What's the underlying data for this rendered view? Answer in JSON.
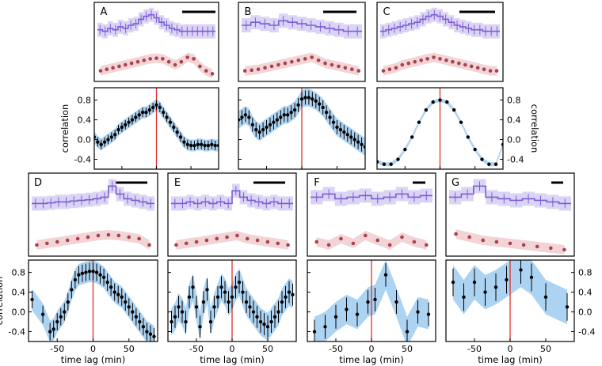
{
  "chart_data": {
    "type": "composite-line",
    "description_text": {},
    "colors": {
      "top_series": "#7b5cd6",
      "top_band": "#d6cdf2",
      "bottom_series": "#a8424c",
      "bottom_band": "#f1cfd3",
      "corr_band": "#9fcbf0",
      "corr_point": "#000000",
      "zero_lag_line": "#e0302a"
    },
    "xlabel": "time lag (min)",
    "ylabel": "correlation",
    "xticks": [
      "-50",
      "0",
      "50"
    ],
    "yticks": [
      "0.8",
      "0.4",
      "0.0",
      "-0.4"
    ],
    "corr_xlim": [
      -90,
      90
    ],
    "corr_ylim": [
      -0.6,
      1.05
    ],
    "panels": [
      {
        "label": "A",
        "top_series": [
          0.35,
          0.3,
          0.4,
          0.35,
          0.45,
          0.4,
          0.5,
          0.55,
          0.7,
          0.8,
          0.85,
          0.75,
          0.6,
          0.5,
          0.4,
          0.35,
          0.3,
          0.3,
          0.3,
          0.3,
          0.3,
          0.3,
          0.3
        ],
        "bottom_series": [
          0.3,
          0.35,
          0.4,
          0.45,
          0.5,
          0.55,
          0.6,
          0.65,
          0.7,
          0.72,
          0.7,
          0.6,
          0.5,
          0.6,
          0.75,
          0.7,
          0.45,
          0.3,
          0.2
        ],
        "corr_lag": [
          -90,
          -85,
          -80,
          -75,
          -70,
          -65,
          -60,
          -55,
          -50,
          -45,
          -40,
          -35,
          -30,
          -25,
          -20,
          -15,
          -10,
          -5,
          0,
          5,
          10,
          15,
          20,
          25,
          30,
          35,
          40,
          45,
          50,
          55,
          60,
          65,
          70,
          75,
          80,
          85,
          90
        ],
        "corr_value": [
          0.05,
          -0.05,
          -0.1,
          -0.05,
          0.0,
          0.05,
          0.1,
          0.2,
          0.25,
          0.3,
          0.35,
          0.4,
          0.45,
          0.5,
          0.55,
          0.55,
          0.6,
          0.65,
          0.7,
          0.65,
          0.55,
          0.45,
          0.35,
          0.25,
          0.15,
          0.05,
          -0.05,
          -0.1,
          -0.12,
          -0.12,
          -0.1,
          -0.1,
          -0.12,
          -0.12,
          -0.1,
          -0.12,
          -0.12
        ],
        "corr_err": 0.12,
        "right_axis": false
      },
      {
        "label": "B",
        "top_series": [
          0.5,
          0.6,
          0.55,
          0.5,
          0.65,
          0.6,
          0.55,
          0.5,
          0.45,
          0.4,
          0.35,
          0.3,
          0.3
        ],
        "bottom_series": [
          0.3,
          0.32,
          0.35,
          0.4,
          0.45,
          0.5,
          0.55,
          0.6,
          0.65,
          0.7,
          0.75,
          0.65,
          0.55,
          0.5,
          0.45,
          0.4,
          0.35,
          0.3
        ],
        "corr_lag": [
          -90,
          -85,
          -80,
          -75,
          -70,
          -65,
          -60,
          -55,
          -50,
          -45,
          -40,
          -35,
          -30,
          -25,
          -20,
          -15,
          -10,
          -5,
          0,
          5,
          10,
          15,
          20,
          25,
          30,
          35,
          40,
          45,
          50,
          55,
          60,
          65,
          70,
          75,
          80,
          85,
          90
        ],
        "corr_value": [
          0.4,
          0.45,
          0.5,
          0.45,
          0.3,
          0.2,
          0.15,
          0.2,
          0.25,
          0.3,
          0.35,
          0.4,
          0.45,
          0.5,
          0.5,
          0.55,
          0.6,
          0.7,
          0.82,
          0.85,
          0.85,
          0.82,
          0.78,
          0.72,
          0.65,
          0.55,
          0.45,
          0.35,
          0.25,
          0.2,
          0.15,
          0.1,
          0.05,
          0.0,
          -0.05,
          -0.1,
          -0.15
        ],
        "corr_err": 0.18,
        "right_axis": false
      },
      {
        "label": "C",
        "top_series": [
          0.3,
          0.35,
          0.4,
          0.45,
          0.5,
          0.55,
          0.6,
          0.7,
          0.8,
          0.85,
          0.8,
          0.7,
          0.6,
          0.5,
          0.45,
          0.4,
          0.35,
          0.35,
          0.3,
          0.3,
          0.3
        ],
        "bottom_series": [
          0.3,
          0.35,
          0.4,
          0.5,
          0.55,
          0.6,
          0.65,
          0.7,
          0.75,
          0.7,
          0.65,
          0.6,
          0.55,
          0.5,
          0.45,
          0.4,
          0.35,
          0.3,
          0.3
        ],
        "corr_lag": [
          -90,
          -80,
          -70,
          -60,
          -50,
          -40,
          -30,
          -20,
          -10,
          0,
          10,
          20,
          30,
          40,
          50,
          60,
          70,
          80,
          90
        ],
        "corr_value": [
          -0.45,
          -0.5,
          -0.5,
          -0.4,
          -0.2,
          0.05,
          0.35,
          0.6,
          0.76,
          0.8,
          0.76,
          0.6,
          0.35,
          0.05,
          -0.2,
          -0.4,
          -0.5,
          -0.5,
          -0.1
        ],
        "corr_err": 0.04,
        "right_axis": true
      },
      {
        "label": "D",
        "top_series": [
          0.3,
          0.3,
          0.32,
          0.35,
          0.35,
          0.38,
          0.4,
          0.42,
          0.45,
          0.5,
          0.85,
          0.6,
          0.45,
          0.4,
          0.35,
          0.3
        ],
        "bottom_series": [
          0.3,
          0.35,
          0.4,
          0.45,
          0.5,
          0.55,
          0.6,
          0.62,
          0.6,
          0.55,
          0.5,
          0.3
        ],
        "corr_lag": [
          -85,
          -70,
          -60,
          -55,
          -50,
          -45,
          -40,
          -35,
          -30,
          -25,
          -20,
          -15,
          -10,
          -5,
          0,
          5,
          10,
          15,
          20,
          25,
          30,
          35,
          40,
          45,
          50,
          55,
          60,
          65,
          70,
          75,
          80,
          85
        ],
        "corr_value": [
          0.25,
          -0.05,
          -0.4,
          -0.35,
          -0.2,
          -0.1,
          0.0,
          0.2,
          0.45,
          0.65,
          0.75,
          0.78,
          0.8,
          0.82,
          0.82,
          0.8,
          0.75,
          0.7,
          0.6,
          0.5,
          0.4,
          0.35,
          0.3,
          0.2,
          0.1,
          0.0,
          -0.1,
          -0.2,
          -0.3,
          -0.4,
          -0.45,
          -0.5
        ],
        "corr_err": 0.22,
        "right_axis": false
      },
      {
        "label": "E",
        "top_series": [
          0.3,
          0.3,
          0.35,
          0.3,
          0.35,
          0.3,
          0.35,
          0.3,
          0.7,
          0.5,
          0.4,
          0.35,
          0.3,
          0.35,
          0.3,
          0.3
        ],
        "bottom_series": [
          0.3,
          0.35,
          0.4,
          0.45,
          0.5,
          0.55,
          0.6,
          0.5,
          0.45,
          0.4,
          0.35,
          0.3
        ],
        "corr_lag": [
          -85,
          -80,
          -75,
          -70,
          -65,
          -60,
          -55,
          -50,
          -45,
          -40,
          -35,
          -30,
          -25,
          -20,
          -15,
          -10,
          -5,
          0,
          5,
          10,
          15,
          20,
          25,
          30,
          35,
          40,
          45,
          50,
          55,
          60,
          65,
          70,
          75,
          80,
          85
        ],
        "corr_value": [
          -0.2,
          -0.1,
          0.1,
          0.0,
          -0.2,
          0.3,
          0.5,
          0.1,
          -0.3,
          0.2,
          0.45,
          -0.2,
          0.1,
          0.3,
          0.5,
          0.4,
          0.2,
          0.3,
          0.5,
          0.6,
          0.4,
          0.2,
          0.1,
          0.0,
          -0.1,
          -0.2,
          -0.25,
          -0.3,
          -0.2,
          -0.1,
          0.0,
          0.2,
          0.3,
          0.4,
          0.35
        ],
        "corr_err": 0.28,
        "right_axis": false
      },
      {
        "label": "F",
        "top_series": [
          0.5,
          0.6,
          0.45,
          0.5,
          0.55,
          0.45,
          0.5,
          0.6,
          0.5,
          0.55
        ],
        "bottom_series": [
          0.4,
          0.3,
          0.5,
          0.35,
          0.6,
          0.45,
          0.3,
          0.55,
          0.4,
          0.3
        ],
        "corr_lag": [
          -80,
          -65,
          -50,
          -35,
          -20,
          -5,
          5,
          20,
          35,
          50,
          65,
          80
        ],
        "corr_value": [
          -0.4,
          -0.3,
          -0.1,
          0.05,
          -0.05,
          0.2,
          0.25,
          0.75,
          0.2,
          -0.4,
          0.0,
          -0.05
        ],
        "corr_err": 0.3,
        "right_axis": false
      },
      {
        "label": "G",
        "top_series": [
          0.5,
          0.6,
          0.85,
          0.5,
          0.45,
          0.4,
          0.45,
          0.4,
          0.35,
          0.3
        ],
        "bottom_series": [
          0.65,
          0.55,
          0.45,
          0.4,
          0.35,
          0.3,
          0.25,
          0.2,
          0.15
        ],
        "corr_lag": [
          -80,
          -65,
          -50,
          -35,
          -20,
          -5,
          15,
          30,
          50,
          80
        ],
        "corr_value": [
          0.6,
          0.3,
          0.6,
          0.4,
          0.5,
          0.65,
          0.85,
          0.7,
          0.3,
          0.1
        ],
        "corr_err": 0.35,
        "right_axis": true
      }
    ]
  }
}
